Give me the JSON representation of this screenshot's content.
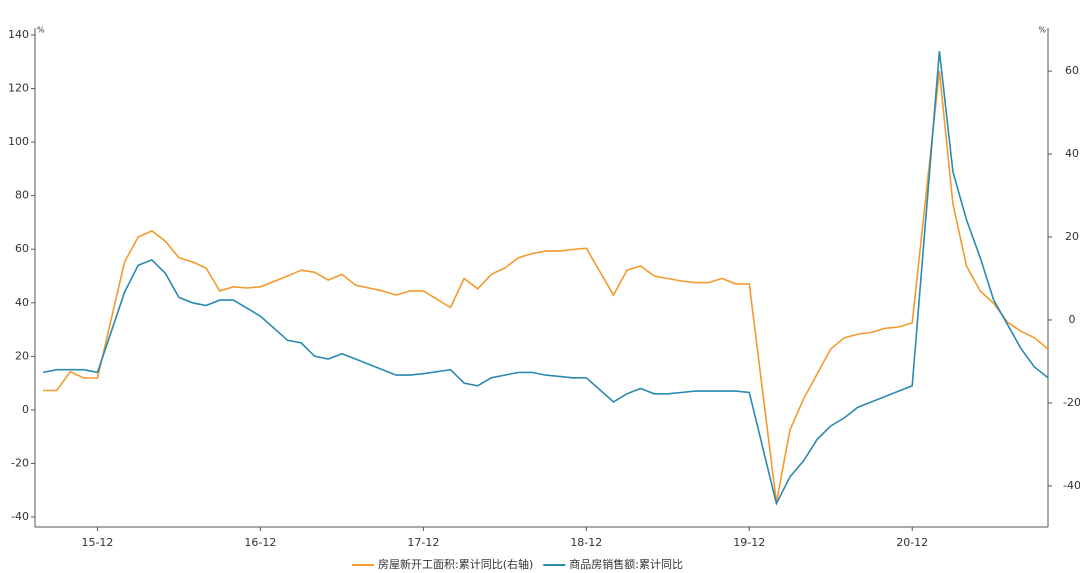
{
  "chart_data": {
    "type": "line",
    "y_unit": "%",
    "y2_unit": "%",
    "x": [
      -4,
      -3,
      -2,
      -1,
      0,
      2,
      3,
      4,
      5,
      6,
      7,
      8,
      9,
      10,
      11,
      12,
      14,
      15,
      16,
      17,
      18,
      19,
      20,
      21,
      22,
      23,
      24,
      26,
      27,
      28,
      29,
      30,
      31,
      32,
      33,
      34,
      35,
      36,
      38,
      39,
      40,
      41,
      42,
      43,
      44,
      45,
      46,
      47,
      48,
      50,
      51,
      52,
      53,
      54,
      55,
      56,
      57,
      58,
      59,
      60,
      62,
      63,
      64,
      65,
      66,
      67,
      68,
      69,
      70
    ],
    "xlim": [
      -4.6,
      70
    ],
    "xticks": [
      {
        "value": 0,
        "label": "15-12"
      },
      {
        "value": 12,
        "label": "16-12"
      },
      {
        "value": 24,
        "label": "17-12"
      },
      {
        "value": 36,
        "label": "18-12"
      },
      {
        "value": 48,
        "label": "19-12"
      },
      {
        "value": 60,
        "label": "20-12"
      }
    ],
    "ylim": [
      -40,
      140
    ],
    "yticks": [
      -40,
      -20,
      0,
      20,
      40,
      60,
      80,
      100,
      120,
      140
    ],
    "y2lim": [
      -47.5,
      68.7
    ],
    "y2ticks": [
      -40,
      -20,
      0,
      20,
      40,
      60
    ],
    "series": [
      {
        "name": "房屋新开工面积:累计同比(右轴)",
        "color": "#f39a2e",
        "axis": "y2",
        "values": [
          -17,
          -17,
          -12.5,
          -14,
          -14,
          14,
          20,
          21.5,
          19,
          15,
          14,
          12.5,
          7,
          8,
          7.7,
          8,
          10.6,
          12,
          11.5,
          9.6,
          11,
          8.4,
          7.7,
          7,
          6,
          7,
          7,
          3,
          10,
          7.5,
          11,
          12.5,
          15,
          16,
          16.6,
          16.6,
          17,
          17.3,
          6,
          12,
          13,
          10.6,
          10,
          9.4,
          9,
          9,
          10,
          8.7,
          8.7,
          -44,
          -26.5,
          -19,
          -13,
          -7,
          -4.3,
          -3.4,
          -3,
          -2,
          -1.7,
          -0.7,
          60,
          28,
          13,
          7,
          4,
          -0.5,
          -2.7,
          -4.3,
          -7
        ]
      },
      {
        "name": "商品房销售额:累计同比",
        "color": "#2a8ab0",
        "values": [
          14,
          15,
          15,
          15,
          14,
          44,
          54,
          56,
          51,
          42,
          40,
          39,
          41,
          41,
          38,
          35,
          26,
          25,
          20,
          19,
          21,
          19,
          17,
          15,
          13,
          13,
          13.5,
          15,
          10,
          9,
          12,
          13,
          14,
          14,
          13,
          12.5,
          12,
          12,
          3,
          6,
          8,
          6,
          6,
          6.5,
          7,
          7,
          7,
          7,
          6.5,
          -35,
          -25,
          -19,
          -11,
          -6,
          -3,
          1,
          3,
          5,
          7,
          9,
          134,
          89,
          71,
          57,
          41,
          32,
          23,
          16,
          12
        ]
      }
    ]
  }
}
